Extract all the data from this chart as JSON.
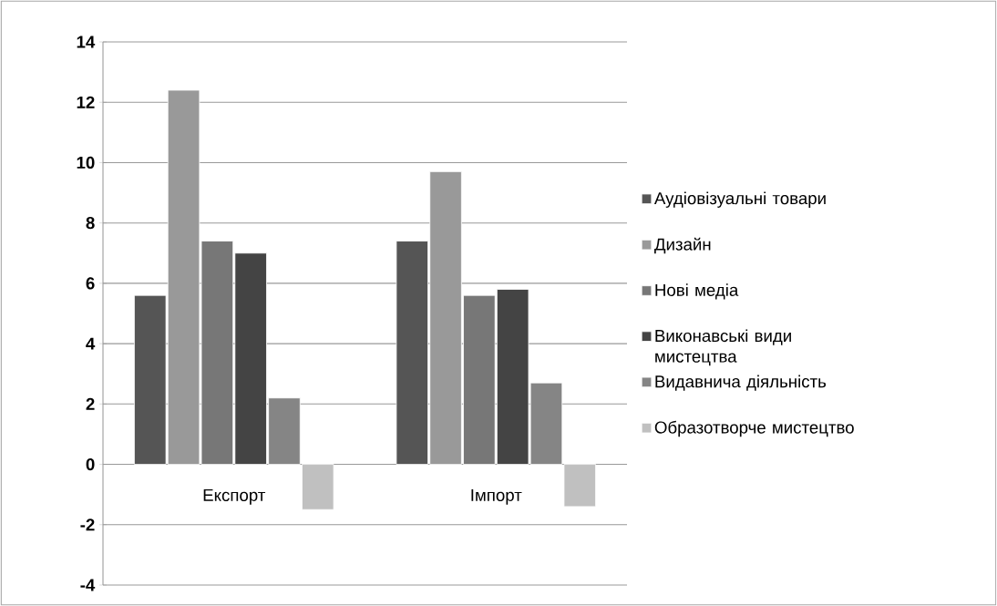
{
  "chart_data": {
    "type": "bar",
    "categories": [
      "Експорт",
      "Імпорт"
    ],
    "series": [
      {
        "name": "Аудіовізуальні товари",
        "color": "#555555",
        "values": [
          5.6,
          7.4
        ]
      },
      {
        "name": "Дизайн",
        "color": "#999999",
        "values": [
          12.4,
          9.7
        ]
      },
      {
        "name": "Нові медіа",
        "color": "#777777",
        "values": [
          7.4,
          5.6
        ]
      },
      {
        "name": "Виконавські види мистецтва",
        "color": "#444444",
        "values": [
          7.0,
          5.8
        ]
      },
      {
        "name": "Видавнича діяльність",
        "color": "#858585",
        "values": [
          2.2,
          2.7
        ]
      },
      {
        "name": "Образотворче мистецтво",
        "color": "#c0c0c0",
        "values": [
          -1.5,
          -1.4
        ]
      }
    ],
    "ylim": [
      -4,
      14
    ],
    "yticks": [
      -4,
      -2,
      0,
      2,
      4,
      6,
      8,
      10,
      12,
      14
    ],
    "grid": "y",
    "legend": "right"
  }
}
